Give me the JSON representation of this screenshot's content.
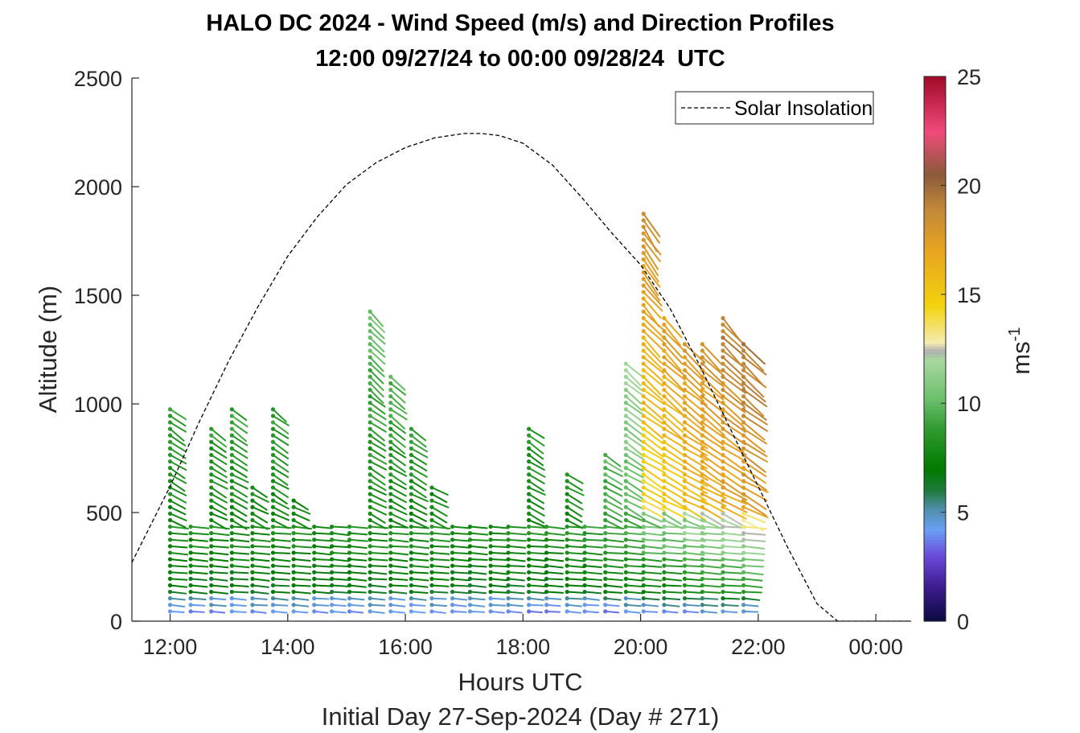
{
  "chart_data": {
    "type": "scatter",
    "title": "HALO DC 2024 - Wind Speed (m/s) and Direction Profiles",
    "subtitle": "12:00 09/27/24 to 00:00 09/28/24  UTC",
    "xlabel": "Hours UTC",
    "xlabel2": "Initial Day 27-Sep-2024 (Day # 271)",
    "ylabel": "Altitude (m)",
    "colorbar_label": "ms",
    "colorbar_label_exp": "-1",
    "xlim": [
      11.35,
      24.6
    ],
    "ylim": [
      0,
      2500
    ],
    "x_ticks": [
      12,
      14,
      16,
      18,
      20,
      22,
      24
    ],
    "x_tick_labels": [
      "12:00",
      "14:00",
      "16:00",
      "18:00",
      "20:00",
      "22:00",
      "00:00"
    ],
    "y_ticks": [
      0,
      500,
      1000,
      1500,
      2000,
      2500
    ],
    "y_tick_labels": [
      "0",
      "500",
      "1000",
      "1500",
      "2000",
      "2500"
    ],
    "colorbar_range": [
      0,
      25
    ],
    "colorbar_ticks": [
      0,
      5,
      10,
      15,
      20,
      25
    ],
    "colorbar_tick_labels": [
      "0",
      "5",
      "10",
      "15",
      "20",
      "25"
    ],
    "colormap_stops": [
      [
        0,
        "#0a0a40"
      ],
      [
        1.5,
        "#3a1a8a"
      ],
      [
        3,
        "#6a4ad8"
      ],
      [
        4.2,
        "#6a9ff5"
      ],
      [
        5.2,
        "#4e8ea8"
      ],
      [
        6,
        "#1f7a3c"
      ],
      [
        7,
        "#007a00"
      ],
      [
        8.8,
        "#2e9a2e"
      ],
      [
        10.2,
        "#6cbf6c"
      ],
      [
        12,
        "#a8d8a0"
      ],
      [
        12.4,
        "#b0b0b0"
      ],
      [
        12.8,
        "#f5ecb0"
      ],
      [
        14.5,
        "#f2d20e"
      ],
      [
        17,
        "#e8a520"
      ],
      [
        19,
        "#c0873a"
      ],
      [
        20.5,
        "#8b5a3a"
      ],
      [
        22.5,
        "#f04a7a"
      ],
      [
        25,
        "#a00a28"
      ]
    ],
    "legend": {
      "label": "Solar Insolation",
      "position": "top-right",
      "style": "dashed"
    },
    "solar_insolation": {
      "x": [
        11.35,
        12.0,
        12.5,
        13.0,
        13.5,
        14.0,
        14.5,
        15.0,
        15.5,
        16.0,
        16.5,
        17.0,
        17.3,
        17.6,
        18.0,
        18.5,
        19.0,
        19.5,
        20.0,
        20.5,
        21.0,
        21.5,
        22.0,
        22.5,
        23.0,
        23.35,
        24.6
      ],
      "y": [
        270,
        620,
        920,
        1200,
        1450,
        1680,
        1860,
        2010,
        2110,
        2180,
        2225,
        2245,
        2245,
        2235,
        2200,
        2100,
        1950,
        1790,
        1640,
        1440,
        1180,
        900,
        620,
        340,
        80,
        0,
        0
      ]
    },
    "profile_times": [
      12.0,
      12.35,
      12.7,
      13.05,
      13.4,
      13.75,
      14.1,
      14.45,
      14.75,
      15.05,
      15.4,
      15.75,
      16.1,
      16.45,
      16.8,
      17.1,
      17.45,
      17.75,
      18.1,
      18.4,
      18.75,
      19.05,
      19.4,
      19.75,
      20.05,
      20.4,
      20.75,
      21.05,
      21.4,
      21.75
    ],
    "profile_tops_m": [
      1000,
      440,
      900,
      1000,
      640,
      1000,
      580,
      440,
      440,
      440,
      1450,
      1150,
      900,
      630,
      440,
      440,
      440,
      440,
      900,
      440,
      700,
      440,
      780,
      1200,
      1900,
      1400,
      1300,
      1300,
      1400,
      1300
    ],
    "range_gate_spacing_m": 30,
    "arrow_convention": "dot marks observation point; tail points downwind of wind direction; color is wind speed"
  }
}
